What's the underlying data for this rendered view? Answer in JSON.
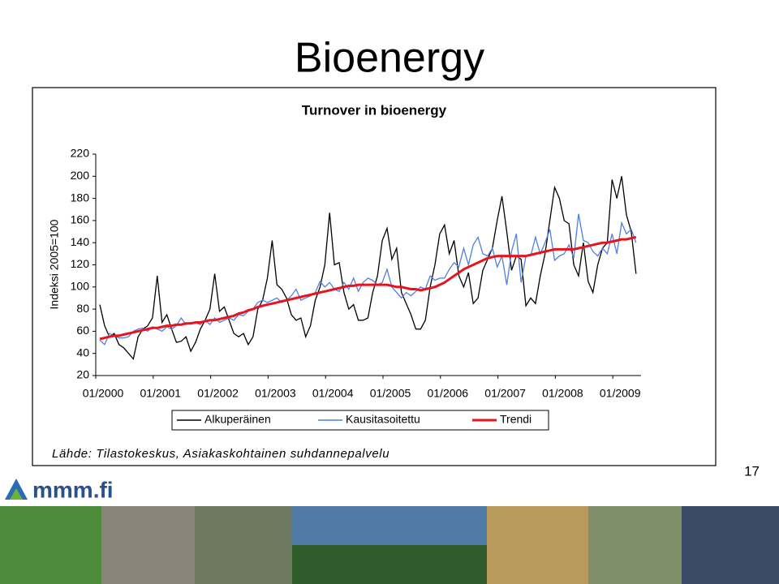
{
  "slide_title": "Bioenergy",
  "page_number": "17",
  "logo": "mmm.fi",
  "source": "Lähde: Tilastokeskus, Asiakaskohtainen suhdannepalvelu",
  "chart_data": {
    "type": "line",
    "title": "Turnover in bioenergy",
    "y_label": "Indeksi 2005=100",
    "categories": [
      "01/2000",
      null,
      null,
      null,
      null,
      null,
      null,
      null,
      null,
      null,
      null,
      null,
      "01/2001",
      null,
      null,
      null,
      null,
      null,
      null,
      null,
      null,
      null,
      null,
      null,
      "01/2002",
      null,
      null,
      null,
      null,
      null,
      null,
      null,
      null,
      null,
      null,
      null,
      "01/2003",
      null,
      null,
      null,
      null,
      null,
      null,
      null,
      null,
      null,
      null,
      null,
      "01/2004",
      null,
      null,
      null,
      null,
      null,
      null,
      null,
      null,
      null,
      null,
      null,
      "01/2005",
      null,
      null,
      null,
      null,
      null,
      null,
      null,
      null,
      null,
      null,
      null,
      "01/2006",
      null,
      null,
      null,
      null,
      null,
      null,
      null,
      null,
      null,
      null,
      null,
      "01/2007",
      null,
      null,
      null,
      null,
      null,
      null,
      null,
      null,
      null,
      null,
      null,
      "01/2008",
      null,
      null,
      null,
      null,
      null,
      null,
      null,
      null,
      null,
      null,
      null,
      "01/2009",
      null,
      null,
      null,
      null
    ],
    "series": [
      {
        "name": "Alkuperäinen",
        "color": "#000000",
        "values": [
          84,
          65,
          55,
          58,
          48,
          45,
          40,
          35,
          55,
          62,
          65,
          72,
          110,
          68,
          75,
          62,
          50,
          51,
          55,
          42,
          50,
          62,
          70,
          80,
          112,
          78,
          82,
          70,
          58,
          55,
          58,
          48,
          55,
          80,
          88,
          108,
          142,
          102,
          98,
          90,
          75,
          70,
          72,
          55,
          65,
          88,
          100,
          120,
          167,
          120,
          122,
          95,
          80,
          84,
          70,
          70,
          72,
          95,
          110,
          142,
          153,
          125,
          135,
          95,
          85,
          75,
          62,
          62,
          70,
          100,
          120,
          148,
          156,
          130,
          142,
          110,
          100,
          113,
          85,
          90,
          115,
          125,
          135,
          160,
          182,
          150,
          115,
          128,
          125,
          83,
          90,
          85,
          110,
          130,
          160,
          190,
          180,
          160,
          157,
          120,
          110,
          140,
          105,
          95,
          120,
          135,
          140,
          197,
          180,
          200,
          165,
          150,
          112
        ]
      },
      {
        "name": "Kausitasoitettu",
        "color": "#4f7fdf",
        "values": [
          52,
          48,
          58,
          56,
          54,
          54,
          55,
          60,
          62,
          63,
          60,
          64,
          62,
          60,
          64,
          62,
          65,
          72,
          66,
          68,
          68,
          66,
          70,
          66,
          72,
          68,
          70,
          72,
          70,
          75,
          74,
          78,
          80,
          86,
          88,
          86,
          88,
          90,
          86,
          88,
          92,
          98,
          88,
          90,
          92,
          95,
          105,
          100,
          104,
          98,
          96,
          104,
          98,
          108,
          96,
          104,
          108,
          106,
          102,
          104,
          116,
          100,
          95,
          90,
          95,
          92,
          96,
          100,
          98,
          110,
          106,
          108,
          108,
          116,
          122,
          118,
          135,
          120,
          138,
          145,
          130,
          128,
          135,
          118,
          128,
          102,
          132,
          148,
          104,
          128,
          128,
          145,
          130,
          140,
          152,
          124,
          128,
          130,
          138,
          126,
          166,
          142,
          140,
          132,
          128,
          135,
          130,
          148,
          130,
          158,
          148,
          152,
          140
        ]
      },
      {
        "name": "Trendi",
        "color": "#e8141b",
        "values": [
          53,
          54,
          55,
          56,
          56,
          57,
          58,
          59,
          60,
          61,
          62,
          63,
          63,
          64,
          65,
          65,
          66,
          66,
          67,
          67,
          68,
          68,
          69,
          70,
          70,
          71,
          72,
          73,
          74,
          76,
          77,
          79,
          80,
          82,
          83,
          84,
          85,
          86,
          87,
          88,
          89,
          90,
          91,
          92,
          93,
          94,
          95,
          96,
          97,
          98,
          99,
          100,
          101,
          101,
          102,
          102,
          102,
          102,
          102,
          102,
          102,
          101,
          100,
          100,
          99,
          98,
          98,
          97,
          98,
          99,
          100,
          102,
          104,
          107,
          110,
          113,
          116,
          118,
          120,
          122,
          124,
          126,
          127,
          128,
          128,
          128,
          128,
          128,
          128,
          128,
          129,
          130,
          131,
          132,
          133,
          134,
          134,
          134,
          134,
          134,
          135,
          136,
          137,
          138,
          139,
          140,
          140,
          141,
          142,
          143,
          143,
          144,
          145
        ]
      }
    ],
    "ylim": [
      20,
      220
    ],
    "yticks": [
      20,
      40,
      60,
      80,
      100,
      120,
      140,
      160,
      180,
      200,
      220
    ],
    "grid": false,
    "legend": "bottom"
  }
}
